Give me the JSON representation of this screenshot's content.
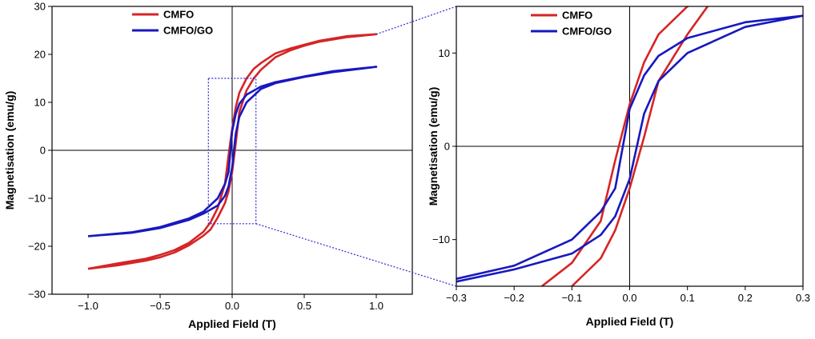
{
  "colors": {
    "cmfo": "#d62424",
    "cmfo_go": "#1818c0",
    "axis": "#000000",
    "zoom_box": "#2a2ad0"
  },
  "chart_data": [
    {
      "type": "line",
      "id": "full",
      "xlabel": "Applied Field (T)",
      "ylabel": "Magnetisation (emu/g)",
      "xlim": [
        -1.25,
        1.25
      ],
      "ylim": [
        -30,
        30
      ],
      "xticks": [
        -1.0,
        -0.5,
        0.0,
        0.5,
        1.0
      ],
      "xtick_labels": [
        "−1.0",
        "−0.5",
        "0.0",
        "0.5",
        "1.0"
      ],
      "yticks": [
        -30,
        -20,
        -10,
        0,
        10,
        20,
        30
      ],
      "ytick_labels": [
        "−30",
        "−20",
        "−10",
        "0",
        "10",
        "20",
        "30"
      ],
      "legend_position": "top-left",
      "series": [
        {
          "name": "CMFO",
          "color": "cmfo",
          "x": [
            -1.0,
            -0.8,
            -0.6,
            -0.5,
            -0.4,
            -0.3,
            -0.2,
            -0.15,
            -0.1,
            -0.05,
            -0.025,
            0.0,
            0.025,
            0.05,
            0.1,
            0.15,
            0.2,
            0.3,
            0.4,
            0.5,
            0.6,
            0.8,
            1.0,
            0.8,
            0.6,
            0.5,
            0.4,
            0.3,
            0.2,
            0.15,
            0.1,
            0.05,
            0.025,
            0.0,
            -0.025,
            -0.05,
            -0.1,
            -0.15,
            -0.2,
            -0.3,
            -0.4,
            -0.5,
            -0.6,
            -0.8,
            -1.0
          ],
          "y": [
            -24.7,
            -24.0,
            -23.0,
            -22.3,
            -21.3,
            -19.8,
            -17.8,
            -16.5,
            -14.0,
            -11.0,
            -8.5,
            -4.5,
            1.5,
            8.0,
            12.5,
            15.0,
            16.8,
            19.4,
            20.8,
            21.8,
            22.6,
            23.6,
            24.2,
            23.8,
            22.8,
            22.0,
            21.2,
            20.2,
            18.2,
            17.0,
            15.0,
            12.0,
            9.0,
            4.5,
            -1.0,
            -7.0,
            -12.0,
            -15.0,
            -17.0,
            -19.3,
            -20.8,
            -21.8,
            -22.6,
            -23.6,
            -24.7
          ]
        },
        {
          "name": "CMFO/GO",
          "color": "cmfo_go",
          "x": [
            -1.0,
            -0.7,
            -0.5,
            -0.3,
            -0.2,
            -0.1,
            -0.05,
            -0.025,
            0.0,
            0.025,
            0.05,
            0.1,
            0.2,
            0.3,
            0.5,
            0.7,
            1.0,
            0.7,
            0.5,
            0.3,
            0.2,
            0.1,
            0.05,
            0.025,
            0.0,
            -0.025,
            -0.05,
            -0.1,
            -0.2,
            -0.3,
            -0.5,
            -0.7,
            -1.0
          ],
          "y": [
            -17.9,
            -17.2,
            -16.2,
            -14.5,
            -13.2,
            -11.5,
            -9.5,
            -7.5,
            -3.5,
            3.5,
            7.0,
            10.0,
            12.8,
            14.0,
            15.3,
            16.3,
            17.4,
            16.5,
            15.4,
            14.2,
            13.3,
            11.6,
            9.7,
            7.6,
            4.0,
            -4.5,
            -7.0,
            -10.0,
            -12.8,
            -14.2,
            -16.0,
            -17.1,
            -17.9
          ]
        }
      ]
    },
    {
      "type": "line",
      "id": "zoom",
      "xlabel": "Applied Field (T)",
      "ylabel": "Magnetisation (emu/g)",
      "xlim": [
        -0.3,
        0.3
      ],
      "ylim": [
        -15,
        15
      ],
      "xticks": [
        -0.3,
        -0.2,
        -0.1,
        0.0,
        0.1,
        0.2,
        0.3
      ],
      "xtick_labels": [
        "−0.3",
        "−0.2",
        "−0.1",
        "0.0",
        "0.1",
        "0.2",
        "0.3"
      ],
      "yticks": [
        -10,
        0,
        10
      ],
      "ytick_labels": [
        "−10",
        "0",
        "10"
      ],
      "legend_position": "top-center",
      "series": [
        {
          "name": "CMFO",
          "color": "cmfo",
          "x": [
            -0.152,
            -0.1,
            -0.05,
            -0.025,
            0.0,
            0.025,
            0.05,
            0.1,
            0.15,
            0.1,
            0.05,
            0.025,
            0.0,
            -0.025,
            -0.05,
            -0.1
          ],
          "y": [
            -15.0,
            -12.5,
            -8.0,
            -1.5,
            4.5,
            9.0,
            12.0,
            15.0,
            16.3,
            12.0,
            7.0,
            1.0,
            -4.5,
            -9.0,
            -12.0,
            -15.0
          ],
          "closed": false
        },
        {
          "name": "CMFO/GO",
          "color": "cmfo_go",
          "x": [
            -0.3,
            -0.2,
            -0.1,
            -0.05,
            -0.025,
            0.0,
            0.025,
            0.05,
            0.1,
            0.2,
            0.3,
            0.2,
            0.1,
            0.05,
            0.025,
            0.0,
            -0.025,
            -0.05,
            -0.1,
            -0.2,
            -0.3
          ],
          "y": [
            -14.5,
            -13.2,
            -11.5,
            -9.5,
            -7.5,
            -3.5,
            3.5,
            7.0,
            10.0,
            12.8,
            14.0,
            13.3,
            11.6,
            9.7,
            7.6,
            4.0,
            -4.5,
            -7.0,
            -10.0,
            -12.8,
            -14.2
          ]
        }
      ]
    }
  ]
}
